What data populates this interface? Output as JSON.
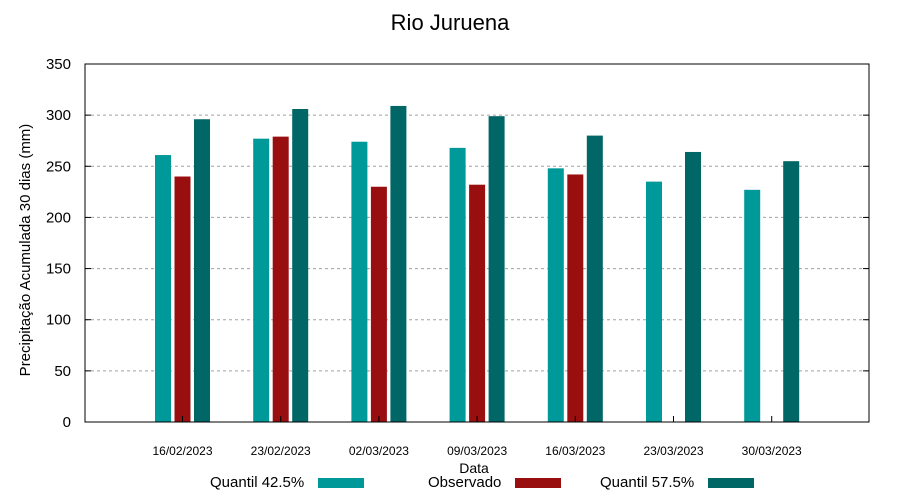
{
  "chart_data": {
    "type": "bar",
    "title": "Rio Juruena",
    "xlabel": "Data",
    "ylabel": "Precipitação Acumulada 30 dias (mm)",
    "ylim": [
      0,
      350
    ],
    "yticks": [
      0,
      50,
      100,
      150,
      200,
      250,
      300,
      350
    ],
    "grid": true,
    "legend_position": "bottom",
    "categories": [
      "16/02/2023",
      "23/02/2023",
      "02/03/2023",
      "09/03/2023",
      "16/03/2023",
      "23/03/2023",
      "30/03/2023"
    ],
    "series": [
      {
        "name": "Quantil 42.5%",
        "color": "#009999",
        "values": [
          261,
          277,
          274,
          268,
          248,
          235,
          227
        ]
      },
      {
        "name": "Observado",
        "color": "#990f0f",
        "values": [
          240,
          279,
          230,
          232,
          242,
          null,
          null
        ]
      },
      {
        "name": "Quantil 57.5%",
        "color": "#006666",
        "values": [
          296,
          306,
          309,
          299,
          280,
          264,
          255
        ]
      }
    ]
  }
}
